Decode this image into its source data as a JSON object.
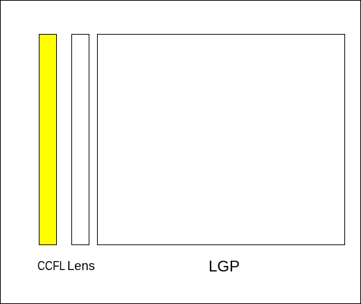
{
  "labels": {
    "ccfl": "CCFL",
    "lens": "Lens",
    "lgp": "LGP"
  },
  "colors": {
    "ccfl_fill": "#ffff00",
    "outline": "#000000",
    "background": "#ffffff"
  }
}
